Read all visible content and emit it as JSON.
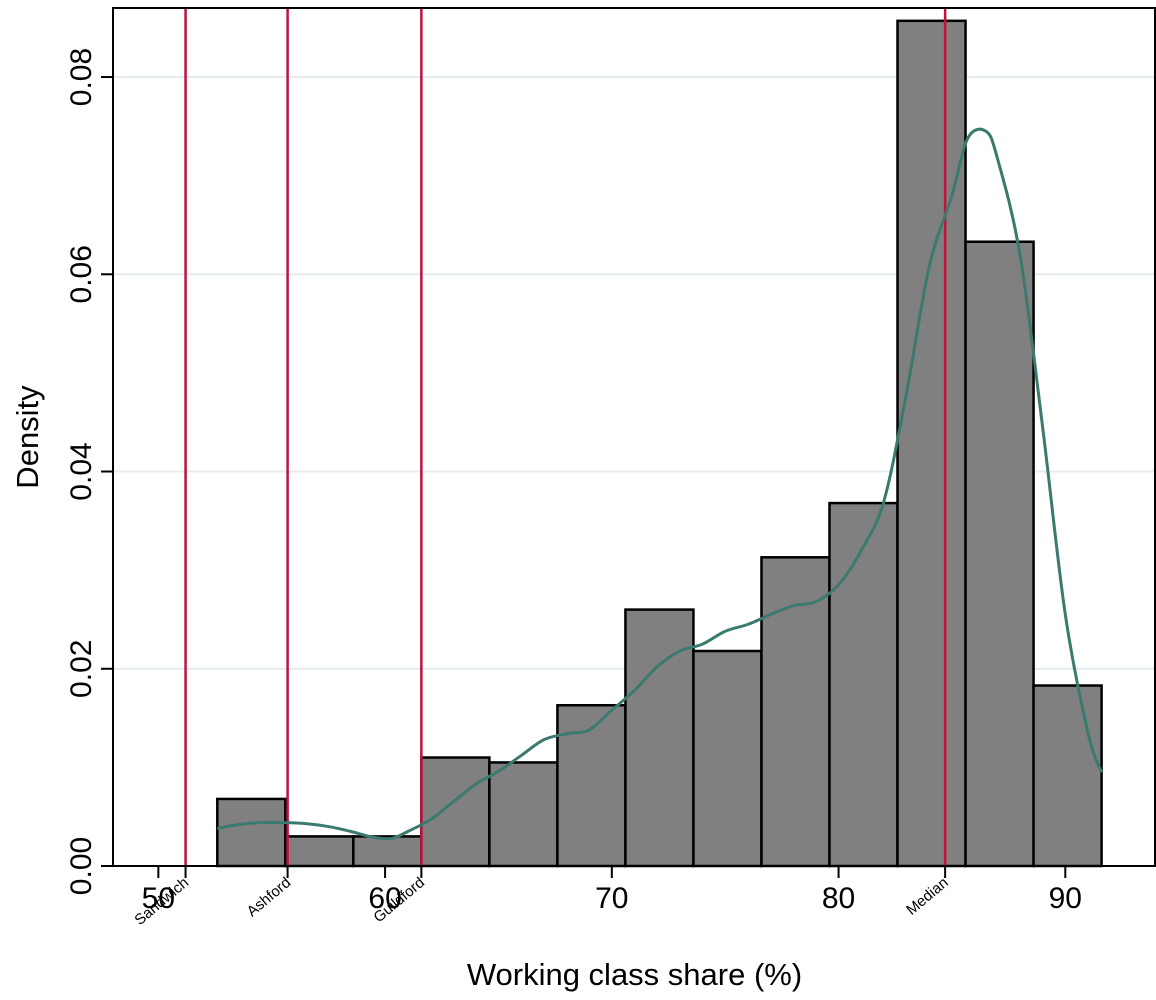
{
  "chart_data": {
    "type": "bar",
    "subtype": "histogram-with-density",
    "xlabel": "Working class share (%)",
    "ylabel": "Density",
    "xlim": [
      48,
      94
    ],
    "ylim": [
      0,
      0.087
    ],
    "x_ticks": [
      50,
      60,
      70,
      80,
      90
    ],
    "x_tick_labels": [
      "50",
      "60",
      "70",
      "80",
      "90"
    ],
    "y_ticks": [
      0,
      0.02,
      0.04,
      0.06,
      0.08
    ],
    "y_tick_labels": [
      "0.00",
      "0.02",
      "0.04",
      "0.06",
      "0.08"
    ],
    "grid": true,
    "bins": [
      {
        "x0": 52.6,
        "x1": 55.6,
        "value": 0.0068
      },
      {
        "x0": 55.6,
        "x1": 58.6,
        "value": 0.003
      },
      {
        "x0": 58.6,
        "x1": 61.6,
        "value": 0.003
      },
      {
        "x0": 61.6,
        "x1": 64.6,
        "value": 0.011
      },
      {
        "x0": 64.6,
        "x1": 67.6,
        "value": 0.0105
      },
      {
        "x0": 67.6,
        "x1": 70.6,
        "value": 0.0163
      },
      {
        "x0": 70.6,
        "x1": 73.6,
        "value": 0.026
      },
      {
        "x0": 73.6,
        "x1": 76.6,
        "value": 0.0218
      },
      {
        "x0": 76.6,
        "x1": 79.6,
        "value": 0.0313
      },
      {
        "x0": 79.6,
        "x1": 82.6,
        "value": 0.0368
      },
      {
        "x0": 82.6,
        "x1": 85.6,
        "value": 0.0857
      },
      {
        "x0": 85.6,
        "x1": 88.6,
        "value": 0.0633
      },
      {
        "x0": 88.6,
        "x1": 91.6,
        "value": 0.0183
      }
    ],
    "density_curve": {
      "x": [
        52.6,
        53.5,
        54.5,
        55.5,
        56.5,
        57.5,
        58.5,
        59.5,
        60.3,
        61.0,
        62.0,
        63.0,
        64.0,
        65.0,
        66.0,
        67.0,
        68.0,
        69.0,
        70.0,
        71.0,
        72.0,
        73.0,
        74.0,
        75.0,
        76.0,
        77.0,
        78.0,
        79.0,
        80.0,
        81.0,
        82.0,
        83.0,
        84.0,
        85.0,
        85.7,
        86.5,
        87.0,
        88.0,
        89.0,
        90.0,
        91.0,
        91.6
      ],
      "y": [
        0.0038,
        0.0042,
        0.0044,
        0.0044,
        0.0043,
        0.004,
        0.0035,
        0.0029,
        0.0028,
        0.0035,
        0.0047,
        0.0065,
        0.0083,
        0.0096,
        0.0112,
        0.0128,
        0.0134,
        0.0138,
        0.0158,
        0.0178,
        0.0202,
        0.0218,
        0.0225,
        0.0238,
        0.0245,
        0.0255,
        0.0264,
        0.0268,
        0.0285,
        0.032,
        0.037,
        0.048,
        0.0608,
        0.068,
        0.0738,
        0.0745,
        0.0718,
        0.062,
        0.0445,
        0.0255,
        0.0135,
        0.0095
      ],
      "color": "#3a7a6f"
    },
    "reference_lines": [
      {
        "x": 51.2,
        "label": "Sandwich"
      },
      {
        "x": 55.7,
        "label": "Ashford"
      },
      {
        "x": 61.6,
        "label": "Guildford"
      },
      {
        "x": 84.7,
        "label": "Median"
      }
    ],
    "colors": {
      "bar_fill": "#808080",
      "bar_edge": "#000000",
      "reference_line": "#c0123c",
      "grid": "#e4ecee"
    }
  }
}
